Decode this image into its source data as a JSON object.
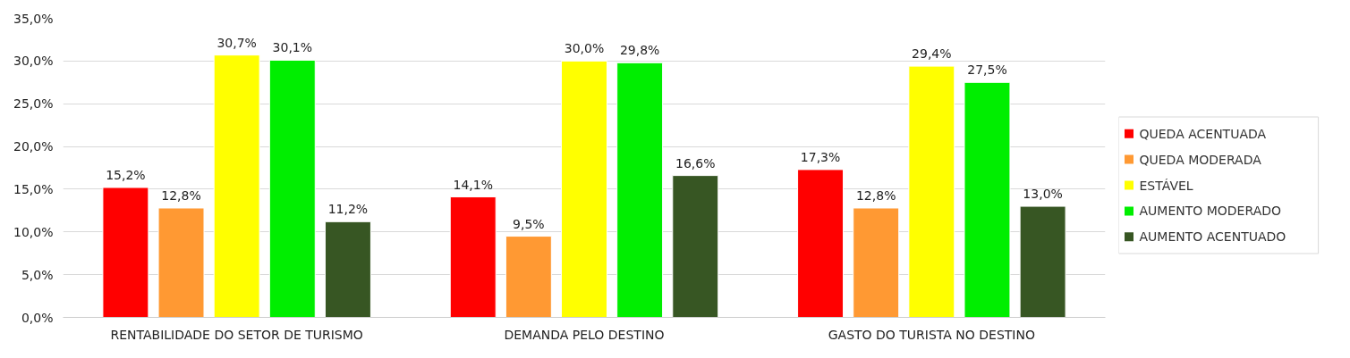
{
  "chart_data": {
    "type": "bar",
    "categories": [
      "RENTABILIDADE DO SETOR DE TURISMO",
      "DEMANDA PELO DESTINO",
      "GASTO DO TURISTA NO DESTINO"
    ],
    "series": [
      {
        "name": "QUEDA ACENTUADA",
        "color": "#ff0000",
        "values": [
          15.2,
          14.1,
          17.3
        ],
        "value_labels": [
          "15,2%",
          "14,1%",
          "17,3%"
        ]
      },
      {
        "name": "QUEDA MODERADA",
        "color": "#ff9933",
        "values": [
          12.8,
          9.5,
          12.8
        ],
        "value_labels": [
          "12,8%",
          "9,5%",
          "12,8%"
        ]
      },
      {
        "name": "ESTÁVEL",
        "color": "#ffff00",
        "values": [
          30.7,
          30.0,
          29.4
        ],
        "value_labels": [
          "30,7%",
          "30,0%",
          "29,4%"
        ]
      },
      {
        "name": "AUMENTO MODERADO",
        "color": "#00ee00",
        "values": [
          30.1,
          29.8,
          27.5
        ],
        "value_labels": [
          "30,1%",
          "29,8%",
          "27,5%"
        ]
      },
      {
        "name": "AUMENTO ACENTUADO",
        "color": "#375623",
        "values": [
          11.2,
          16.6,
          13.0
        ],
        "value_labels": [
          "11,2%",
          "16,6%",
          "13,0%"
        ]
      }
    ],
    "ylim": [
      0,
      35
    ],
    "yticks": [
      {
        "value": 0,
        "label": "0,0%"
      },
      {
        "value": 5,
        "label": "5,0%"
      },
      {
        "value": 10,
        "label": "10,0%"
      },
      {
        "value": 15,
        "label": "15,0%"
      },
      {
        "value": 20,
        "label": "20,0%"
      },
      {
        "value": 25,
        "label": "25,0%"
      },
      {
        "value": 30,
        "label": "30,0%"
      },
      {
        "value": 35,
        "label": "35,0%"
      }
    ],
    "grid": "y",
    "legend": "right"
  }
}
